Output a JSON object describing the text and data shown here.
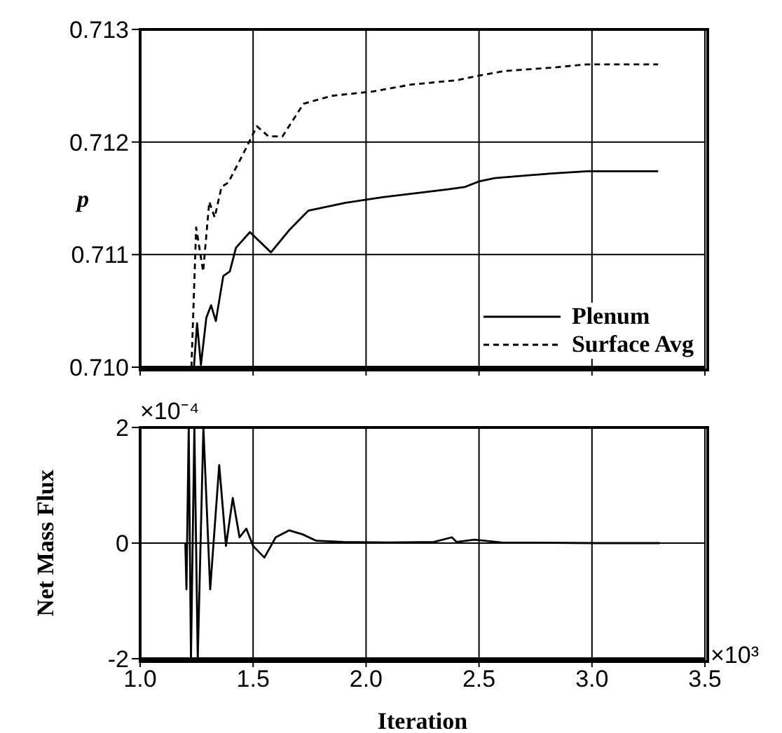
{
  "chart_data": [
    {
      "type": "line",
      "ylabel": "p",
      "xlim": [
        1.0,
        3.5
      ],
      "xticks": [
        1,
        1.5,
        2,
        2.5,
        3,
        3.5
      ],
      "ylim": [
        0.71,
        0.713
      ],
      "yticks": [
        {
          "value": 0.71,
          "label": "0.710"
        },
        0.711,
        0.712,
        0.713
      ],
      "tick_labels": "y",
      "grid": true,
      "legend": "bottom right",
      "marker": "none",
      "series": [
        {
          "name": "Plenum",
          "color": "#000000",
          "line_style": "solid",
          "x": [
            1.238,
            1.252,
            1.269,
            1.293,
            1.314,
            1.335,
            1.368,
            1.397,
            1.424,
            1.486,
            1.579,
            1.661,
            1.744,
            1.909,
            2.074,
            2.364,
            2.436,
            2.5,
            2.57,
            2.818,
            2.98,
            3.293
          ],
          "values": [
            0.71,
            0.71039,
            0.71002,
            0.71044,
            0.71055,
            0.71041,
            0.71081,
            0.71085,
            0.71106,
            0.7112,
            0.71102,
            0.71122,
            0.71139,
            0.71146,
            0.71151,
            0.71158,
            0.7116,
            0.71165,
            0.71168,
            0.71172,
            0.71174,
            0.71174
          ]
        },
        {
          "name": "Surface Avg",
          "color": "#000000",
          "line_style": "dashed",
          "x": [
            1.227,
            1.248,
            1.279,
            1.306,
            1.33,
            1.36,
            1.39,
            1.455,
            1.517,
            1.568,
            1.63,
            1.723,
            1.847,
            2.033,
            2.2,
            2.405,
            2.5,
            2.61,
            2.818,
            2.98,
            3.293
          ],
          "values": [
            0.71,
            0.71124,
            0.71085,
            0.71147,
            0.71133,
            0.7116,
            0.71164,
            0.71189,
            0.71214,
            0.71205,
            0.71205,
            0.71234,
            0.71241,
            0.71245,
            0.71251,
            0.71255,
            0.71259,
            0.71263,
            0.71266,
            0.71269,
            0.71269
          ]
        }
      ]
    },
    {
      "type": "line",
      "xlabel": "Iteration",
      "ylabel": "Net Mass Flux",
      "annotations": [
        "×10⁻⁴",
        "×10³"
      ],
      "xlim": [
        1.0,
        3.5
      ],
      "xticks": [
        {
          "value": 1.0,
          "label": "1.0"
        },
        1.5,
        {
          "value": 2.0,
          "label": "2.0"
        },
        2.5,
        {
          "value": 3.0,
          "label": "3.0"
        },
        3.5
      ],
      "ylim": [
        -2,
        2
      ],
      "yticks": [
        -2,
        0,
        2
      ],
      "grid": true,
      "marker": "none",
      "series": [
        {
          "color": "#000000",
          "line_style": "solid",
          "x": [
            1.2,
            1.205,
            1.215,
            1.225,
            1.24,
            1.255,
            1.28,
            1.31,
            1.35,
            1.38,
            1.41,
            1.44,
            1.47,
            1.5,
            1.55,
            1.6,
            1.66,
            1.72,
            1.78,
            1.9,
            2.1,
            2.3,
            2.38,
            2.4,
            2.48,
            2.6,
            3.0,
            3.3
          ],
          "values": [
            0,
            -0.8,
            2,
            -2,
            2,
            -2,
            2,
            -0.8,
            1.35,
            -0.05,
            0.78,
            0.1,
            0.25,
            -0.05,
            -0.25,
            0.1,
            0.22,
            0.15,
            0.04,
            0.02,
            0.01,
            0.02,
            0.1,
            0.02,
            0.06,
            0.01,
            0,
            0
          ]
        }
      ]
    }
  ]
}
